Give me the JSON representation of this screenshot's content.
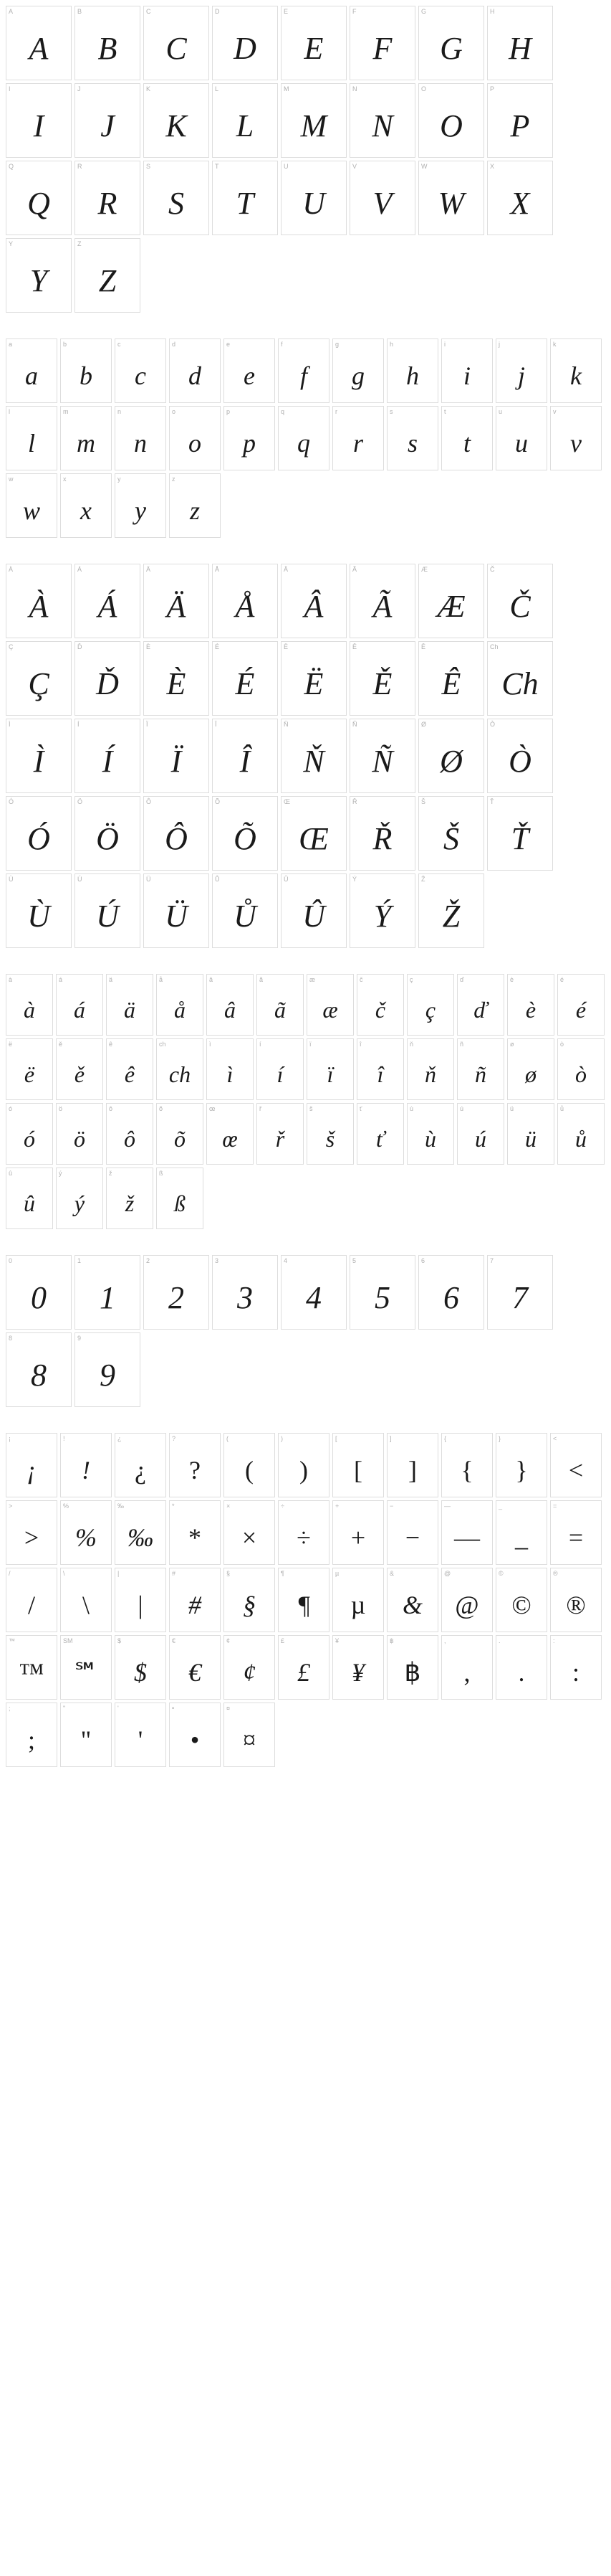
{
  "sections": [
    {
      "size": "lg",
      "cells": [
        {
          "label": "A",
          "glyph": "A"
        },
        {
          "label": "B",
          "glyph": "B"
        },
        {
          "label": "C",
          "glyph": "C"
        },
        {
          "label": "D",
          "glyph": "D"
        },
        {
          "label": "E",
          "glyph": "E"
        },
        {
          "label": "F",
          "glyph": "F"
        },
        {
          "label": "G",
          "glyph": "G"
        },
        {
          "label": "H",
          "glyph": "H"
        },
        {
          "label": "I",
          "glyph": "I"
        },
        {
          "label": "J",
          "glyph": "J"
        },
        {
          "label": "K",
          "glyph": "K"
        },
        {
          "label": "L",
          "glyph": "L"
        },
        {
          "label": "M",
          "glyph": "M"
        },
        {
          "label": "N",
          "glyph": "N"
        },
        {
          "label": "O",
          "glyph": "O"
        },
        {
          "label": "P",
          "glyph": "P"
        },
        {
          "label": "Q",
          "glyph": "Q"
        },
        {
          "label": "R",
          "glyph": "R"
        },
        {
          "label": "S",
          "glyph": "S"
        },
        {
          "label": "T",
          "glyph": "T"
        },
        {
          "label": "U",
          "glyph": "U"
        },
        {
          "label": "V",
          "glyph": "V"
        },
        {
          "label": "W",
          "glyph": "W"
        },
        {
          "label": "X",
          "glyph": "X"
        },
        {
          "label": "Y",
          "glyph": "Y"
        },
        {
          "label": "Z",
          "glyph": "Z"
        }
      ]
    },
    {
      "size": "md",
      "cells": [
        {
          "label": "a",
          "glyph": "a"
        },
        {
          "label": "b",
          "glyph": "b"
        },
        {
          "label": "c",
          "glyph": "c"
        },
        {
          "label": "d",
          "glyph": "d"
        },
        {
          "label": "e",
          "glyph": "e"
        },
        {
          "label": "f",
          "glyph": "f"
        },
        {
          "label": "g",
          "glyph": "g"
        },
        {
          "label": "h",
          "glyph": "h"
        },
        {
          "label": "i",
          "glyph": "i"
        },
        {
          "label": "j",
          "glyph": "j"
        },
        {
          "label": "k",
          "glyph": "k"
        },
        {
          "label": "l",
          "glyph": "l"
        },
        {
          "label": "m",
          "glyph": "m"
        },
        {
          "label": "n",
          "glyph": "n"
        },
        {
          "label": "o",
          "glyph": "o"
        },
        {
          "label": "p",
          "glyph": "p"
        },
        {
          "label": "q",
          "glyph": "q"
        },
        {
          "label": "r",
          "glyph": "r"
        },
        {
          "label": "s",
          "glyph": "s"
        },
        {
          "label": "t",
          "glyph": "t"
        },
        {
          "label": "u",
          "glyph": "u"
        },
        {
          "label": "v",
          "glyph": "v"
        },
        {
          "label": "w",
          "glyph": "w"
        },
        {
          "label": "x",
          "glyph": "x"
        },
        {
          "label": "y",
          "glyph": "y"
        },
        {
          "label": "z",
          "glyph": "z"
        }
      ]
    },
    {
      "size": "lg",
      "cells": [
        {
          "label": "À",
          "glyph": "À"
        },
        {
          "label": "Á",
          "glyph": "Á"
        },
        {
          "label": "Ä",
          "glyph": "Ä"
        },
        {
          "label": "Å",
          "glyph": "Å"
        },
        {
          "label": "Â",
          "glyph": "Â"
        },
        {
          "label": "Ã",
          "glyph": "Ã"
        },
        {
          "label": "Æ",
          "glyph": "Æ"
        },
        {
          "label": "Č",
          "glyph": "Č"
        },
        {
          "label": "Ç",
          "glyph": "Ç"
        },
        {
          "label": "Ď",
          "glyph": "Ď"
        },
        {
          "label": "È",
          "glyph": "È"
        },
        {
          "label": "É",
          "glyph": "É"
        },
        {
          "label": "Ë",
          "glyph": "Ë"
        },
        {
          "label": "Ě",
          "glyph": "Ě"
        },
        {
          "label": "Ê",
          "glyph": "Ê"
        },
        {
          "label": "Ch",
          "glyph": "Ch"
        },
        {
          "label": "Ì",
          "glyph": "Ì"
        },
        {
          "label": "Í",
          "glyph": "Í"
        },
        {
          "label": "Ï",
          "glyph": "Ï"
        },
        {
          "label": "Î",
          "glyph": "Î"
        },
        {
          "label": "Ň",
          "glyph": "Ň"
        },
        {
          "label": "Ñ",
          "glyph": "Ñ"
        },
        {
          "label": "Ø",
          "glyph": "Ø"
        },
        {
          "label": "Ò",
          "glyph": "Ò"
        },
        {
          "label": "Ó",
          "glyph": "Ó"
        },
        {
          "label": "Ö",
          "glyph": "Ö"
        },
        {
          "label": "Ô",
          "glyph": "Ô"
        },
        {
          "label": "Õ",
          "glyph": "Õ"
        },
        {
          "label": "Œ",
          "glyph": "Œ"
        },
        {
          "label": "Ř",
          "glyph": "Ř"
        },
        {
          "label": "Š",
          "glyph": "Š"
        },
        {
          "label": "Ť",
          "glyph": "Ť"
        },
        {
          "label": "Ù",
          "glyph": "Ù"
        },
        {
          "label": "Ú",
          "glyph": "Ú"
        },
        {
          "label": "Ü",
          "glyph": "Ü"
        },
        {
          "label": "Ů",
          "glyph": "Ů"
        },
        {
          "label": "Û",
          "glyph": "Û"
        },
        {
          "label": "Ý",
          "glyph": "Ý"
        },
        {
          "label": "Ž",
          "glyph": "Ž"
        }
      ]
    },
    {
      "size": "sm",
      "cells": [
        {
          "label": "à",
          "glyph": "à"
        },
        {
          "label": "á",
          "glyph": "á"
        },
        {
          "label": "ä",
          "glyph": "ä"
        },
        {
          "label": "å",
          "glyph": "å"
        },
        {
          "label": "â",
          "glyph": "â"
        },
        {
          "label": "ã",
          "glyph": "ã"
        },
        {
          "label": "æ",
          "glyph": "æ"
        },
        {
          "label": "č",
          "glyph": "č"
        },
        {
          "label": "ç",
          "glyph": "ç"
        },
        {
          "label": "ď",
          "glyph": "ď"
        },
        {
          "label": "è",
          "glyph": "è"
        },
        {
          "label": "é",
          "glyph": "é"
        },
        {
          "label": "ë",
          "glyph": "ë"
        },
        {
          "label": "ě",
          "glyph": "ě"
        },
        {
          "label": "ê",
          "glyph": "ê"
        },
        {
          "label": "ch",
          "glyph": "ch"
        },
        {
          "label": "ì",
          "glyph": "ì"
        },
        {
          "label": "í",
          "glyph": "í"
        },
        {
          "label": "ï",
          "glyph": "ï"
        },
        {
          "label": "î",
          "glyph": "î"
        },
        {
          "label": "ň",
          "glyph": "ň"
        },
        {
          "label": "ñ",
          "glyph": "ñ"
        },
        {
          "label": "ø",
          "glyph": "ø"
        },
        {
          "label": "ò",
          "glyph": "ò"
        },
        {
          "label": "ó",
          "glyph": "ó"
        },
        {
          "label": "ö",
          "glyph": "ö"
        },
        {
          "label": "ô",
          "glyph": "ô"
        },
        {
          "label": "õ",
          "glyph": "õ"
        },
        {
          "label": "œ",
          "glyph": "œ"
        },
        {
          "label": "ř",
          "glyph": "ř"
        },
        {
          "label": "š",
          "glyph": "š"
        },
        {
          "label": "ť",
          "glyph": "ť"
        },
        {
          "label": "ù",
          "glyph": "ù"
        },
        {
          "label": "ú",
          "glyph": "ú"
        },
        {
          "label": "ü",
          "glyph": "ü"
        },
        {
          "label": "ů",
          "glyph": "ů"
        },
        {
          "label": "û",
          "glyph": "û"
        },
        {
          "label": "ý",
          "glyph": "ý"
        },
        {
          "label": "ž",
          "glyph": "ž"
        },
        {
          "label": "ß",
          "glyph": "ß"
        }
      ]
    },
    {
      "size": "lg",
      "cells": [
        {
          "label": "0",
          "glyph": "0"
        },
        {
          "label": "1",
          "glyph": "1"
        },
        {
          "label": "2",
          "glyph": "2"
        },
        {
          "label": "3",
          "glyph": "3"
        },
        {
          "label": "4",
          "glyph": "4"
        },
        {
          "label": "5",
          "glyph": "5"
        },
        {
          "label": "6",
          "glyph": "6"
        },
        {
          "label": "7",
          "glyph": "7"
        },
        {
          "label": "8",
          "glyph": "8"
        },
        {
          "label": "9",
          "glyph": "9"
        }
      ]
    },
    {
      "size": "md",
      "cells": [
        {
          "label": "¡",
          "glyph": "¡"
        },
        {
          "label": "!",
          "glyph": "!"
        },
        {
          "label": "¿",
          "glyph": "¿",
          "up": true
        },
        {
          "label": "?",
          "glyph": "?",
          "up": true
        },
        {
          "label": "(",
          "glyph": "(",
          "up": true
        },
        {
          "label": ")",
          "glyph": ")",
          "up": true
        },
        {
          "label": "[",
          "glyph": "[",
          "up": true
        },
        {
          "label": "]",
          "glyph": "]",
          "up": true
        },
        {
          "label": "{",
          "glyph": "{",
          "up": true
        },
        {
          "label": "}",
          "glyph": "}",
          "up": true
        },
        {
          "label": "<",
          "glyph": "<",
          "up": true
        },
        {
          "label": ">",
          "glyph": ">",
          "up": true
        },
        {
          "label": "%",
          "glyph": "%"
        },
        {
          "label": "‰",
          "glyph": "‰"
        },
        {
          "label": "*",
          "glyph": "*",
          "up": true
        },
        {
          "label": "×",
          "glyph": "×",
          "up": true
        },
        {
          "label": "÷",
          "glyph": "÷",
          "up": true
        },
        {
          "label": "+",
          "glyph": "+",
          "up": true
        },
        {
          "label": "−",
          "glyph": "−",
          "up": true
        },
        {
          "label": "—",
          "glyph": "—",
          "up": true
        },
        {
          "label": "_",
          "glyph": "_",
          "up": true
        },
        {
          "label": "=",
          "glyph": "=",
          "up": true
        },
        {
          "label": "/",
          "glyph": "/",
          "up": true
        },
        {
          "label": "\\",
          "glyph": "\\",
          "up": true
        },
        {
          "label": "|",
          "glyph": "|",
          "up": true
        },
        {
          "label": "#",
          "glyph": "#"
        },
        {
          "label": "§",
          "glyph": "§"
        },
        {
          "label": "¶",
          "glyph": "¶"
        },
        {
          "label": "µ",
          "glyph": "µ",
          "up": true
        },
        {
          "label": "&",
          "glyph": "&"
        },
        {
          "label": "@",
          "glyph": "@",
          "up": true
        },
        {
          "label": "©",
          "glyph": "©",
          "up": true
        },
        {
          "label": "®",
          "glyph": "®",
          "up": true
        },
        {
          "label": "™",
          "glyph": "™",
          "up": true
        },
        {
          "label": "SM",
          "glyph": "℠",
          "up": true
        },
        {
          "label": "$",
          "glyph": "$"
        },
        {
          "label": "€",
          "glyph": "€"
        },
        {
          "label": "¢",
          "glyph": "¢"
        },
        {
          "label": "£",
          "glyph": "£"
        },
        {
          "label": "¥",
          "glyph": "¥"
        },
        {
          "label": "฿",
          "glyph": "฿",
          "up": true
        },
        {
          "label": ",",
          "glyph": ",",
          "up": true
        },
        {
          "label": ".",
          "glyph": ".",
          "up": true
        },
        {
          "label": ":",
          "glyph": ":",
          "up": true
        },
        {
          "label": ";",
          "glyph": ";",
          "up": true
        },
        {
          "label": "\"",
          "glyph": "\"",
          "up": true
        },
        {
          "label": "'",
          "glyph": "'",
          "up": true
        },
        {
          "label": "•",
          "glyph": "•",
          "up": true
        },
        {
          "label": "¤",
          "glyph": "¤",
          "up": true
        }
      ]
    }
  ],
  "colors": {
    "border": "#dddddd",
    "label": "#b0b0b0",
    "glyph": "#1a1a1a",
    "background": "#ffffff"
  }
}
